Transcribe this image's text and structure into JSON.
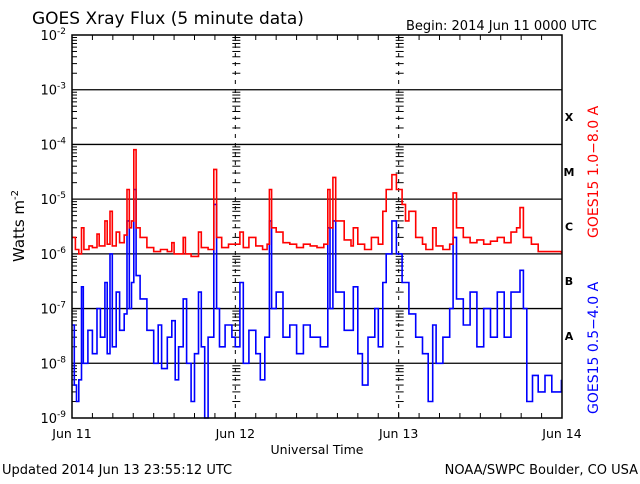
{
  "chart_data": {
    "type": "line",
    "title": "GOES Xray Flux (5 minute data)",
    "begin_label": "Begin:  2014 Jun 11 0000 UTC",
    "xlabel": "Universal Time",
    "ylabel": "Watts m",
    "ylabel_sup": "-2",
    "y_scale": "log",
    "ylim": [
      1e-09,
      0.01
    ],
    "y_ticks": [
      {
        "base": "10",
        "exp": "-2",
        "value": 0.01
      },
      {
        "base": "10",
        "exp": "-3",
        "value": 0.001
      },
      {
        "base": "10",
        "exp": "-4",
        "value": 0.0001
      },
      {
        "base": "10",
        "exp": "-5",
        "value": 1e-05
      },
      {
        "base": "10",
        "exp": "-6",
        "value": 1e-06
      },
      {
        "base": "10",
        "exp": "-7",
        "value": 1e-07
      },
      {
        "base": "10",
        "exp": "-8",
        "value": 1e-08
      },
      {
        "base": "10",
        "exp": "-9",
        "value": 1e-09
      }
    ],
    "xlim": [
      "2014-06-11 00:00",
      "2014-06-14 00:00"
    ],
    "x_ticks": [
      {
        "label": "Jun 11",
        "time": "2014-06-11 00:00"
      },
      {
        "label": "Jun 12",
        "time": "2014-06-12 00:00"
      },
      {
        "label": "Jun 13",
        "time": "2014-06-13 00:00"
      },
      {
        "label": "Jun 14",
        "time": "2014-06-14 00:00"
      }
    ],
    "grid": "horizontal at decades",
    "flare_classes": [
      {
        "label": "X",
        "min": 0.0001
      },
      {
        "label": "M",
        "min": 1e-05
      },
      {
        "label": "C",
        "min": 1e-06
      },
      {
        "label": "B",
        "min": 1e-07
      },
      {
        "label": "A",
        "min": 1e-08
      }
    ],
    "series": [
      {
        "name": "GOES15 1.0−8.0 A",
        "color": "#ff0000",
        "points": [
          [
            "2014-06-11 00:00",
            2e-06
          ],
          [
            "2014-06-11 00:30",
            1.2e-06
          ],
          [
            "2014-06-11 01:00",
            1e-06
          ],
          [
            "2014-06-11 01:24",
            3e-06
          ],
          [
            "2014-06-11 01:45",
            1.2e-06
          ],
          [
            "2014-06-11 02:30",
            1.4e-06
          ],
          [
            "2014-06-11 03:00",
            1.3e-06
          ],
          [
            "2014-06-11 03:40",
            2.3e-06
          ],
          [
            "2014-06-11 04:00",
            1.4e-06
          ],
          [
            "2014-06-11 04:50",
            4e-06
          ],
          [
            "2014-06-11 05:10",
            1.5e-06
          ],
          [
            "2014-06-11 05:35",
            6e-06
          ],
          [
            "2014-06-11 05:55",
            1.4e-06
          ],
          [
            "2014-06-11 06:30",
            2.5e-06
          ],
          [
            "2014-06-11 07:00",
            1.6e-06
          ],
          [
            "2014-06-11 07:40",
            2.2e-06
          ],
          [
            "2014-06-11 08:05",
            1.5e-05
          ],
          [
            "2014-06-11 08:25",
            3e-06
          ],
          [
            "2014-06-11 08:45",
            4e-06
          ],
          [
            "2014-06-11 09:05",
            8e-05
          ],
          [
            "2014-06-11 09:25",
            3e-06
          ],
          [
            "2014-06-11 10:00",
            2e-06
          ],
          [
            "2014-06-11 11:00",
            1.3e-06
          ],
          [
            "2014-06-11 12:00",
            1.1e-06
          ],
          [
            "2014-06-11 13:00",
            1.2e-06
          ],
          [
            "2014-06-11 14:00",
            1.1e-06
          ],
          [
            "2014-06-11 14:40",
            1.6e-06
          ],
          [
            "2014-06-11 15:00",
            1e-06
          ],
          [
            "2014-06-11 16:20",
            2e-06
          ],
          [
            "2014-06-11 16:40",
            1e-06
          ],
          [
            "2014-06-11 17:30",
            9e-07
          ],
          [
            "2014-06-11 18:35",
            2.5e-06
          ],
          [
            "2014-06-11 19:00",
            1.3e-06
          ],
          [
            "2014-06-11 20:00",
            1.2e-06
          ],
          [
            "2014-06-11 20:50",
            3.5e-05
          ],
          [
            "2014-06-11 21:15",
            2e-06
          ],
          [
            "2014-06-11 22:00",
            1.3e-06
          ],
          [
            "2014-06-11 23:00",
            1.5e-06
          ],
          [
            "2014-06-12 00:00",
            1.5e-06
          ],
          [
            "2014-06-12 00:40",
            2.5e-06
          ],
          [
            "2014-06-12 01:10",
            1.3e-06
          ],
          [
            "2014-06-12 02:00",
            2e-06
          ],
          [
            "2014-06-12 03:00",
            1.4e-06
          ],
          [
            "2014-06-12 04:00",
            1.2e-06
          ],
          [
            "2014-06-12 04:40",
            1.5e-06
          ],
          [
            "2014-06-12 05:00",
            1.5e-05
          ],
          [
            "2014-06-12 05:20",
            3e-06
          ],
          [
            "2014-06-12 06:00",
            2.5e-06
          ],
          [
            "2014-06-12 07:00",
            1.6e-06
          ],
          [
            "2014-06-12 08:00",
            1.5e-06
          ],
          [
            "2014-06-12 09:00",
            1.3e-06
          ],
          [
            "2014-06-12 10:00",
            1.5e-06
          ],
          [
            "2014-06-12 11:00",
            1.4e-06
          ],
          [
            "2014-06-12 12:00",
            1.3e-06
          ],
          [
            "2014-06-12 13:00",
            1.5e-06
          ],
          [
            "2014-06-12 13:35",
            1.5e-05
          ],
          [
            "2014-06-12 13:55",
            3e-06
          ],
          [
            "2014-06-12 14:20",
            2.5e-05
          ],
          [
            "2014-06-12 14:45",
            4e-06
          ],
          [
            "2014-06-12 16:00",
            1.8e-06
          ],
          [
            "2014-06-12 17:00",
            1.4e-06
          ],
          [
            "2014-06-12 17:20",
            3e-06
          ],
          [
            "2014-06-12 18:00",
            1.5e-06
          ],
          [
            "2014-06-12 19:00",
            1.2e-06
          ],
          [
            "2014-06-12 20:00",
            2e-06
          ],
          [
            "2014-06-12 21:00",
            1.5e-06
          ],
          [
            "2014-06-12 21:40",
            6e-06
          ],
          [
            "2014-06-12 22:10",
            1.5e-05
          ],
          [
            "2014-06-12 23:00",
            2.8e-05
          ],
          [
            "2014-06-12 23:40",
            1.5e-05
          ],
          [
            "2014-06-13 00:30",
            8e-06
          ],
          [
            "2014-06-13 01:00",
            4e-06
          ],
          [
            "2014-06-13 01:30",
            6e-06
          ],
          [
            "2014-06-13 02:30",
            2e-06
          ],
          [
            "2014-06-13 03:30",
            1.5e-06
          ],
          [
            "2014-06-13 04:00",
            1.2e-06
          ],
          [
            "2014-06-13 05:00",
            3e-06
          ],
          [
            "2014-06-13 05:30",
            1.4e-06
          ],
          [
            "2014-06-13 06:30",
            1.2e-06
          ],
          [
            "2014-06-13 07:30",
            1.5e-06
          ],
          [
            "2014-06-13 08:00",
            1.3e-05
          ],
          [
            "2014-06-13 08:30",
            3e-06
          ],
          [
            "2014-06-13 09:30",
            2e-06
          ],
          [
            "2014-06-13 10:30",
            1.6e-06
          ],
          [
            "2014-06-13 11:30",
            1.8e-06
          ],
          [
            "2014-06-13 12:30",
            1.5e-06
          ],
          [
            "2014-06-13 13:30",
            1.7e-06
          ],
          [
            "2014-06-13 14:30",
            2e-06
          ],
          [
            "2014-06-13 15:30",
            1.6e-06
          ],
          [
            "2014-06-13 16:30",
            2.5e-06
          ],
          [
            "2014-06-13 17:20",
            3e-06
          ],
          [
            "2014-06-13 17:50",
            7e-06
          ],
          [
            "2014-06-13 18:20",
            2e-06
          ],
          [
            "2014-06-13 19:30",
            1.5e-06
          ],
          [
            "2014-06-13 20:30",
            1.1e-06
          ],
          [
            "2014-06-13 22:00",
            1.1e-06
          ],
          [
            "2014-06-13 23:55",
            1e-06
          ]
        ]
      },
      {
        "name": "GOES15 0.5−4.0 A",
        "color": "#0000ff",
        "points": [
          [
            "2014-06-11 00:00",
            5e-08
          ],
          [
            "2014-06-11 00:20",
            4e-09
          ],
          [
            "2014-06-11 00:40",
            2e-09
          ],
          [
            "2014-06-11 01:00",
            5e-09
          ],
          [
            "2014-06-11 01:24",
            2.5e-07
          ],
          [
            "2014-06-11 01:40",
            1e-08
          ],
          [
            "2014-06-11 02:20",
            4e-08
          ],
          [
            "2014-06-11 03:00",
            1.5e-08
          ],
          [
            "2014-06-11 03:40",
            1e-07
          ],
          [
            "2014-06-11 04:10",
            3e-08
          ],
          [
            "2014-06-11 04:50",
            3e-07
          ],
          [
            "2014-06-11 05:10",
            1.5e-08
          ],
          [
            "2014-06-11 05:35",
            1e-06
          ],
          [
            "2014-06-11 05:55",
            2e-08
          ],
          [
            "2014-06-11 06:30",
            2e-07
          ],
          [
            "2014-06-11 07:00",
            4e-08
          ],
          [
            "2014-06-11 07:40",
            8e-08
          ],
          [
            "2014-06-11 08:05",
            4e-06
          ],
          [
            "2014-06-11 08:25",
            1e-07
          ],
          [
            "2014-06-11 08:45",
            3e-07
          ],
          [
            "2014-06-11 09:05",
            1.5e-05
          ],
          [
            "2014-06-11 09:25",
            4e-07
          ],
          [
            "2014-06-11 10:00",
            1.5e-07
          ],
          [
            "2014-06-11 11:00",
            4e-08
          ],
          [
            "2014-06-11 12:00",
            1e-08
          ],
          [
            "2014-06-11 12:40",
            5e-08
          ],
          [
            "2014-06-11 13:10",
            8e-09
          ],
          [
            "2014-06-11 14:00",
            3e-08
          ],
          [
            "2014-06-11 14:40",
            6e-08
          ],
          [
            "2014-06-11 15:10",
            5e-09
          ],
          [
            "2014-06-11 15:40",
            2e-08
          ],
          [
            "2014-06-11 16:20",
            1.5e-07
          ],
          [
            "2014-06-11 16:50",
            1e-08
          ],
          [
            "2014-06-11 17:30",
            2e-09
          ],
          [
            "2014-06-11 18:00",
            1.5e-08
          ],
          [
            "2014-06-11 18:35",
            2e-07
          ],
          [
            "2014-06-11 19:00",
            2e-08
          ],
          [
            "2014-06-11 19:30",
            1e-09
          ],
          [
            "2014-06-11 20:00",
            3e-08
          ],
          [
            "2014-06-11 20:50",
            8e-06
          ],
          [
            "2014-06-11 21:15",
            1e-07
          ],
          [
            "2014-06-11 21:40",
            2e-08
          ],
          [
            "2014-06-11 22:30",
            5e-08
          ],
          [
            "2014-06-11 23:30",
            3e-08
          ],
          [
            "2014-06-12 00:00",
            2e-08
          ],
          [
            "2014-06-12 00:40",
            3e-07
          ],
          [
            "2014-06-12 01:10",
            1e-08
          ],
          [
            "2014-06-12 02:00",
            4e-08
          ],
          [
            "2014-06-12 03:00",
            1.5e-08
          ],
          [
            "2014-06-12 03:40",
            5e-09
          ],
          [
            "2014-06-12 04:20",
            3e-08
          ],
          [
            "2014-06-12 05:00",
            4e-06
          ],
          [
            "2014-06-12 05:20",
            1e-07
          ],
          [
            "2014-06-12 06:00",
            2e-07
          ],
          [
            "2014-06-12 07:00",
            3e-08
          ],
          [
            "2014-06-12 08:00",
            5e-08
          ],
          [
            "2014-06-12 09:00",
            1.5e-08
          ],
          [
            "2014-06-12 10:00",
            5e-08
          ],
          [
            "2014-06-12 11:00",
            3e-08
          ],
          [
            "2014-06-12 12:30",
            2e-08
          ],
          [
            "2014-06-12 13:35",
            3e-06
          ],
          [
            "2014-06-12 13:55",
            1e-07
          ],
          [
            "2014-06-12 14:20",
            4e-06
          ],
          [
            "2014-06-12 14:45",
            2e-07
          ],
          [
            "2014-06-12 16:00",
            4e-08
          ],
          [
            "2014-06-12 17:20",
            2.5e-07
          ],
          [
            "2014-06-12 18:00",
            1.5e-08
          ],
          [
            "2014-06-12 18:40",
            4e-09
          ],
          [
            "2014-06-12 19:30",
            3e-08
          ],
          [
            "2014-06-12 20:30",
            1e-07
          ],
          [
            "2014-06-12 21:00",
            2e-08
          ],
          [
            "2014-06-12 21:40",
            3e-07
          ],
          [
            "2014-06-12 22:10",
            1e-06
          ],
          [
            "2014-06-12 23:00",
            4e-06
          ],
          [
            "2014-06-12 23:40",
            1e-06
          ],
          [
            "2014-06-13 00:30",
            3e-07
          ],
          [
            "2014-06-13 01:30",
            8e-08
          ],
          [
            "2014-06-13 02:30",
            3e-08
          ],
          [
            "2014-06-13 03:30",
            1.5e-08
          ],
          [
            "2014-06-13 04:20",
            2e-09
          ],
          [
            "2014-06-13 05:00",
            5e-08
          ],
          [
            "2014-06-13 05:30",
            1e-08
          ],
          [
            "2014-06-13 06:30",
            3e-08
          ],
          [
            "2014-06-13 07:30",
            1e-07
          ],
          [
            "2014-06-13 08:00",
            2e-06
          ],
          [
            "2014-06-13 08:30",
            1.5e-07
          ],
          [
            "2014-06-13 09:30",
            5e-08
          ],
          [
            "2014-06-13 10:30",
            2e-07
          ],
          [
            "2014-06-13 11:30",
            2e-08
          ],
          [
            "2014-06-13 12:30",
            1e-07
          ],
          [
            "2014-06-13 13:30",
            3e-08
          ],
          [
            "2014-06-13 14:30",
            2e-07
          ],
          [
            "2014-06-13 15:30",
            3e-08
          ],
          [
            "2014-06-13 16:30",
            2e-07
          ],
          [
            "2014-06-13 17:20",
            2e-07
          ],
          [
            "2014-06-13 17:50",
            5e-07
          ],
          [
            "2014-06-13 18:20",
            1e-07
          ],
          [
            "2014-06-13 18:50",
            2e-09
          ],
          [
            "2014-06-13 19:40",
            6e-09
          ],
          [
            "2014-06-13 20:30",
            3e-09
          ],
          [
            "2014-06-13 21:30",
            6e-09
          ],
          [
            "2014-06-13 22:30",
            3e-09
          ],
          [
            "2014-06-13 23:55",
            5e-09
          ]
        ]
      }
    ]
  },
  "footer": {
    "updated": "Updated 2014 Jun 13 23:55:12 UTC",
    "credit": "NOAA/SWPC Boulder, CO USA"
  }
}
